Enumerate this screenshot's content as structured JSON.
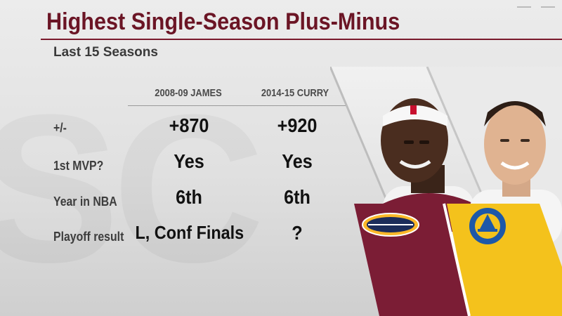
{
  "header": {
    "title": "Highest Single-Season Plus-Minus",
    "subtitle": "Last 15 Seasons"
  },
  "columns": [
    {
      "label": "2008-09 JAMES"
    },
    {
      "label": "2014-15 CURRY"
    }
  ],
  "rows": [
    {
      "label": "+/-",
      "values": [
        "+870",
        "+920"
      ]
    },
    {
      "label": "1st MVP?",
      "values": [
        "Yes",
        "Yes"
      ]
    },
    {
      "label": "Year in NBA",
      "values": [
        "6th",
        "6th"
      ]
    },
    {
      "label": "Playoff result",
      "values": [
        "L, Conf Finals",
        "?"
      ]
    }
  ],
  "players": [
    {
      "name_icon": "lebron-james-photo",
      "team_logo": "cavaliers-logo",
      "team_color": "#7b1d35"
    },
    {
      "name_icon": "stephen-curry-photo",
      "team_logo": "warriors-logo",
      "team_color": "#f4c21c"
    }
  ],
  "colors": {
    "title": "#6b1525",
    "cavaliers_wine": "#7b1d35",
    "warriors_gold": "#f4c21c",
    "warriors_blue": "#1d58a8"
  }
}
